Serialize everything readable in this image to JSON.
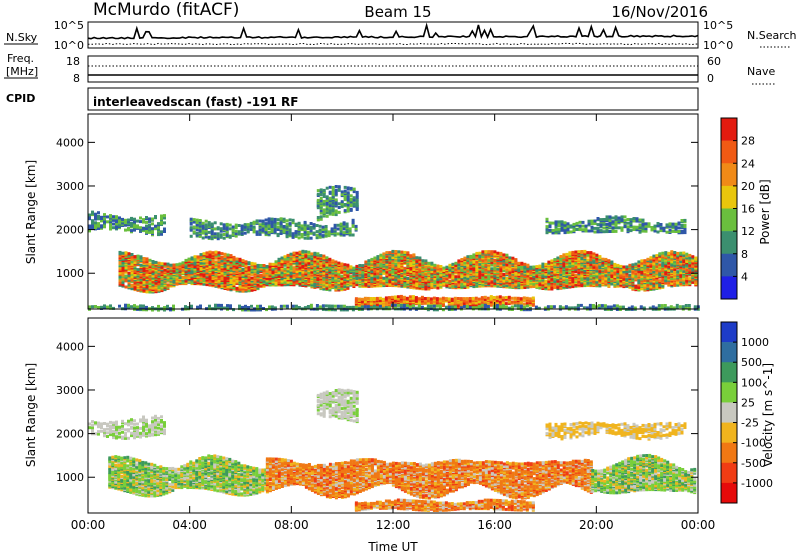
{
  "header": {
    "station": "McMurdo (fitACF)",
    "beam": "Beam 15",
    "date": "16/Nov/2016"
  },
  "top_panels": {
    "nsky_label": "N.Sky",
    "nsky_ticks": [
      "10^5",
      "10^0"
    ],
    "nsearch_label": "N.Search",
    "nsearch_ticks": [
      "10^5",
      "10^0"
    ],
    "freq_label_1": "Freq.",
    "freq_label_2": "[MHz]",
    "freq_ticks": [
      "18",
      "8"
    ],
    "nave_label": "Nave",
    "nave_ticks": [
      "60",
      "0"
    ],
    "cpid_label": "CPID",
    "cpid_text": "interleavedscan (fast) -191 RF"
  },
  "chart_data": [
    {
      "type": "heatmap",
      "title": "",
      "xlabel": "Time UT",
      "ylabel": "Slant Range [km]",
      "x_ticks": [
        "00:00",
        "04:00",
        "08:00",
        "12:00",
        "16:00",
        "20:00",
        "00:00"
      ],
      "x_range_hours": [
        0,
        24
      ],
      "y_ticks": [
        1000,
        2000,
        3000,
        4000
      ],
      "y_range": [
        180,
        4650
      ],
      "colorbar": {
        "label": "Power [dB]",
        "ticks": [
          "4",
          "8",
          "12",
          "16",
          "20",
          "24",
          "28"
        ],
        "colors": [
          "#1f1fe6",
          "#2f57a8",
          "#3b8f6f",
          "#6abf3e",
          "#e9c60c",
          "#f08a17",
          "#f05a14",
          "#e21b10"
        ]
      },
      "regions": [
        {
          "t0": 1.2,
          "t1": 23.9,
          "r0": 650,
          "r1": 1450,
          "level": "strong"
        },
        {
          "t0": 0.0,
          "t1": 3.0,
          "r0": 1950,
          "r1": 2400,
          "level": "weak"
        },
        {
          "t0": 4.0,
          "t1": 10.5,
          "r0": 1850,
          "r1": 2250,
          "level": "weak"
        },
        {
          "t0": 9.0,
          "t1": 10.6,
          "r0": 2300,
          "r1": 3000,
          "level": "weak"
        },
        {
          "t0": 18.0,
          "t1": 23.5,
          "r0": 1950,
          "r1": 2300,
          "level": "weak"
        },
        {
          "t0": 10.5,
          "t1": 17.5,
          "r0": 280,
          "r1": 500,
          "level": "mid"
        },
        {
          "t0": 0.0,
          "t1": 24.0,
          "r0": 200,
          "r1": 300,
          "level": "weak"
        }
      ]
    },
    {
      "type": "heatmap",
      "title": "",
      "xlabel": "Time UT",
      "ylabel": "Slant Range [km]",
      "x_ticks": [
        "00:00",
        "04:00",
        "08:00",
        "12:00",
        "16:00",
        "20:00",
        "00:00"
      ],
      "x_range_hours": [
        0,
        24
      ],
      "y_ticks": [
        1000,
        2000,
        3000,
        4000
      ],
      "y_range": [
        180,
        4650
      ],
      "colorbar": {
        "label": "Velocity [m s^-1]",
        "ticks": [
          "1000",
          "500",
          "100",
          "25",
          "-25",
          "-100",
          "-500",
          "-1000"
        ],
        "colors": [
          "#1e3cc8",
          "#2f6ea0",
          "#3d9a5c",
          "#79cf3a",
          "#c8c8c0",
          "#f0b41e",
          "#f07814",
          "#f03c14",
          "#e60a0a"
        ]
      },
      "regions": [
        {
          "t0": 0.8,
          "t1": 7.0,
          "r0": 650,
          "r1": 1450,
          "level": "green"
        },
        {
          "t0": 7.0,
          "t1": 19.8,
          "r0": 650,
          "r1": 1450,
          "level": "orange"
        },
        {
          "t0": 19.8,
          "t1": 23.9,
          "r0": 650,
          "r1": 1450,
          "level": "green"
        },
        {
          "t0": 0.0,
          "t1": 3.0,
          "r0": 1950,
          "r1": 2400,
          "level": "gray"
        },
        {
          "t0": 9.0,
          "t1": 10.6,
          "r0": 2300,
          "r1": 3000,
          "level": "gray"
        },
        {
          "t0": 18.0,
          "t1": 23.5,
          "r0": 1950,
          "r1": 2300,
          "level": "yellow"
        },
        {
          "t0": 10.5,
          "t1": 17.5,
          "r0": 280,
          "r1": 500,
          "level": "orange"
        }
      ]
    }
  ]
}
